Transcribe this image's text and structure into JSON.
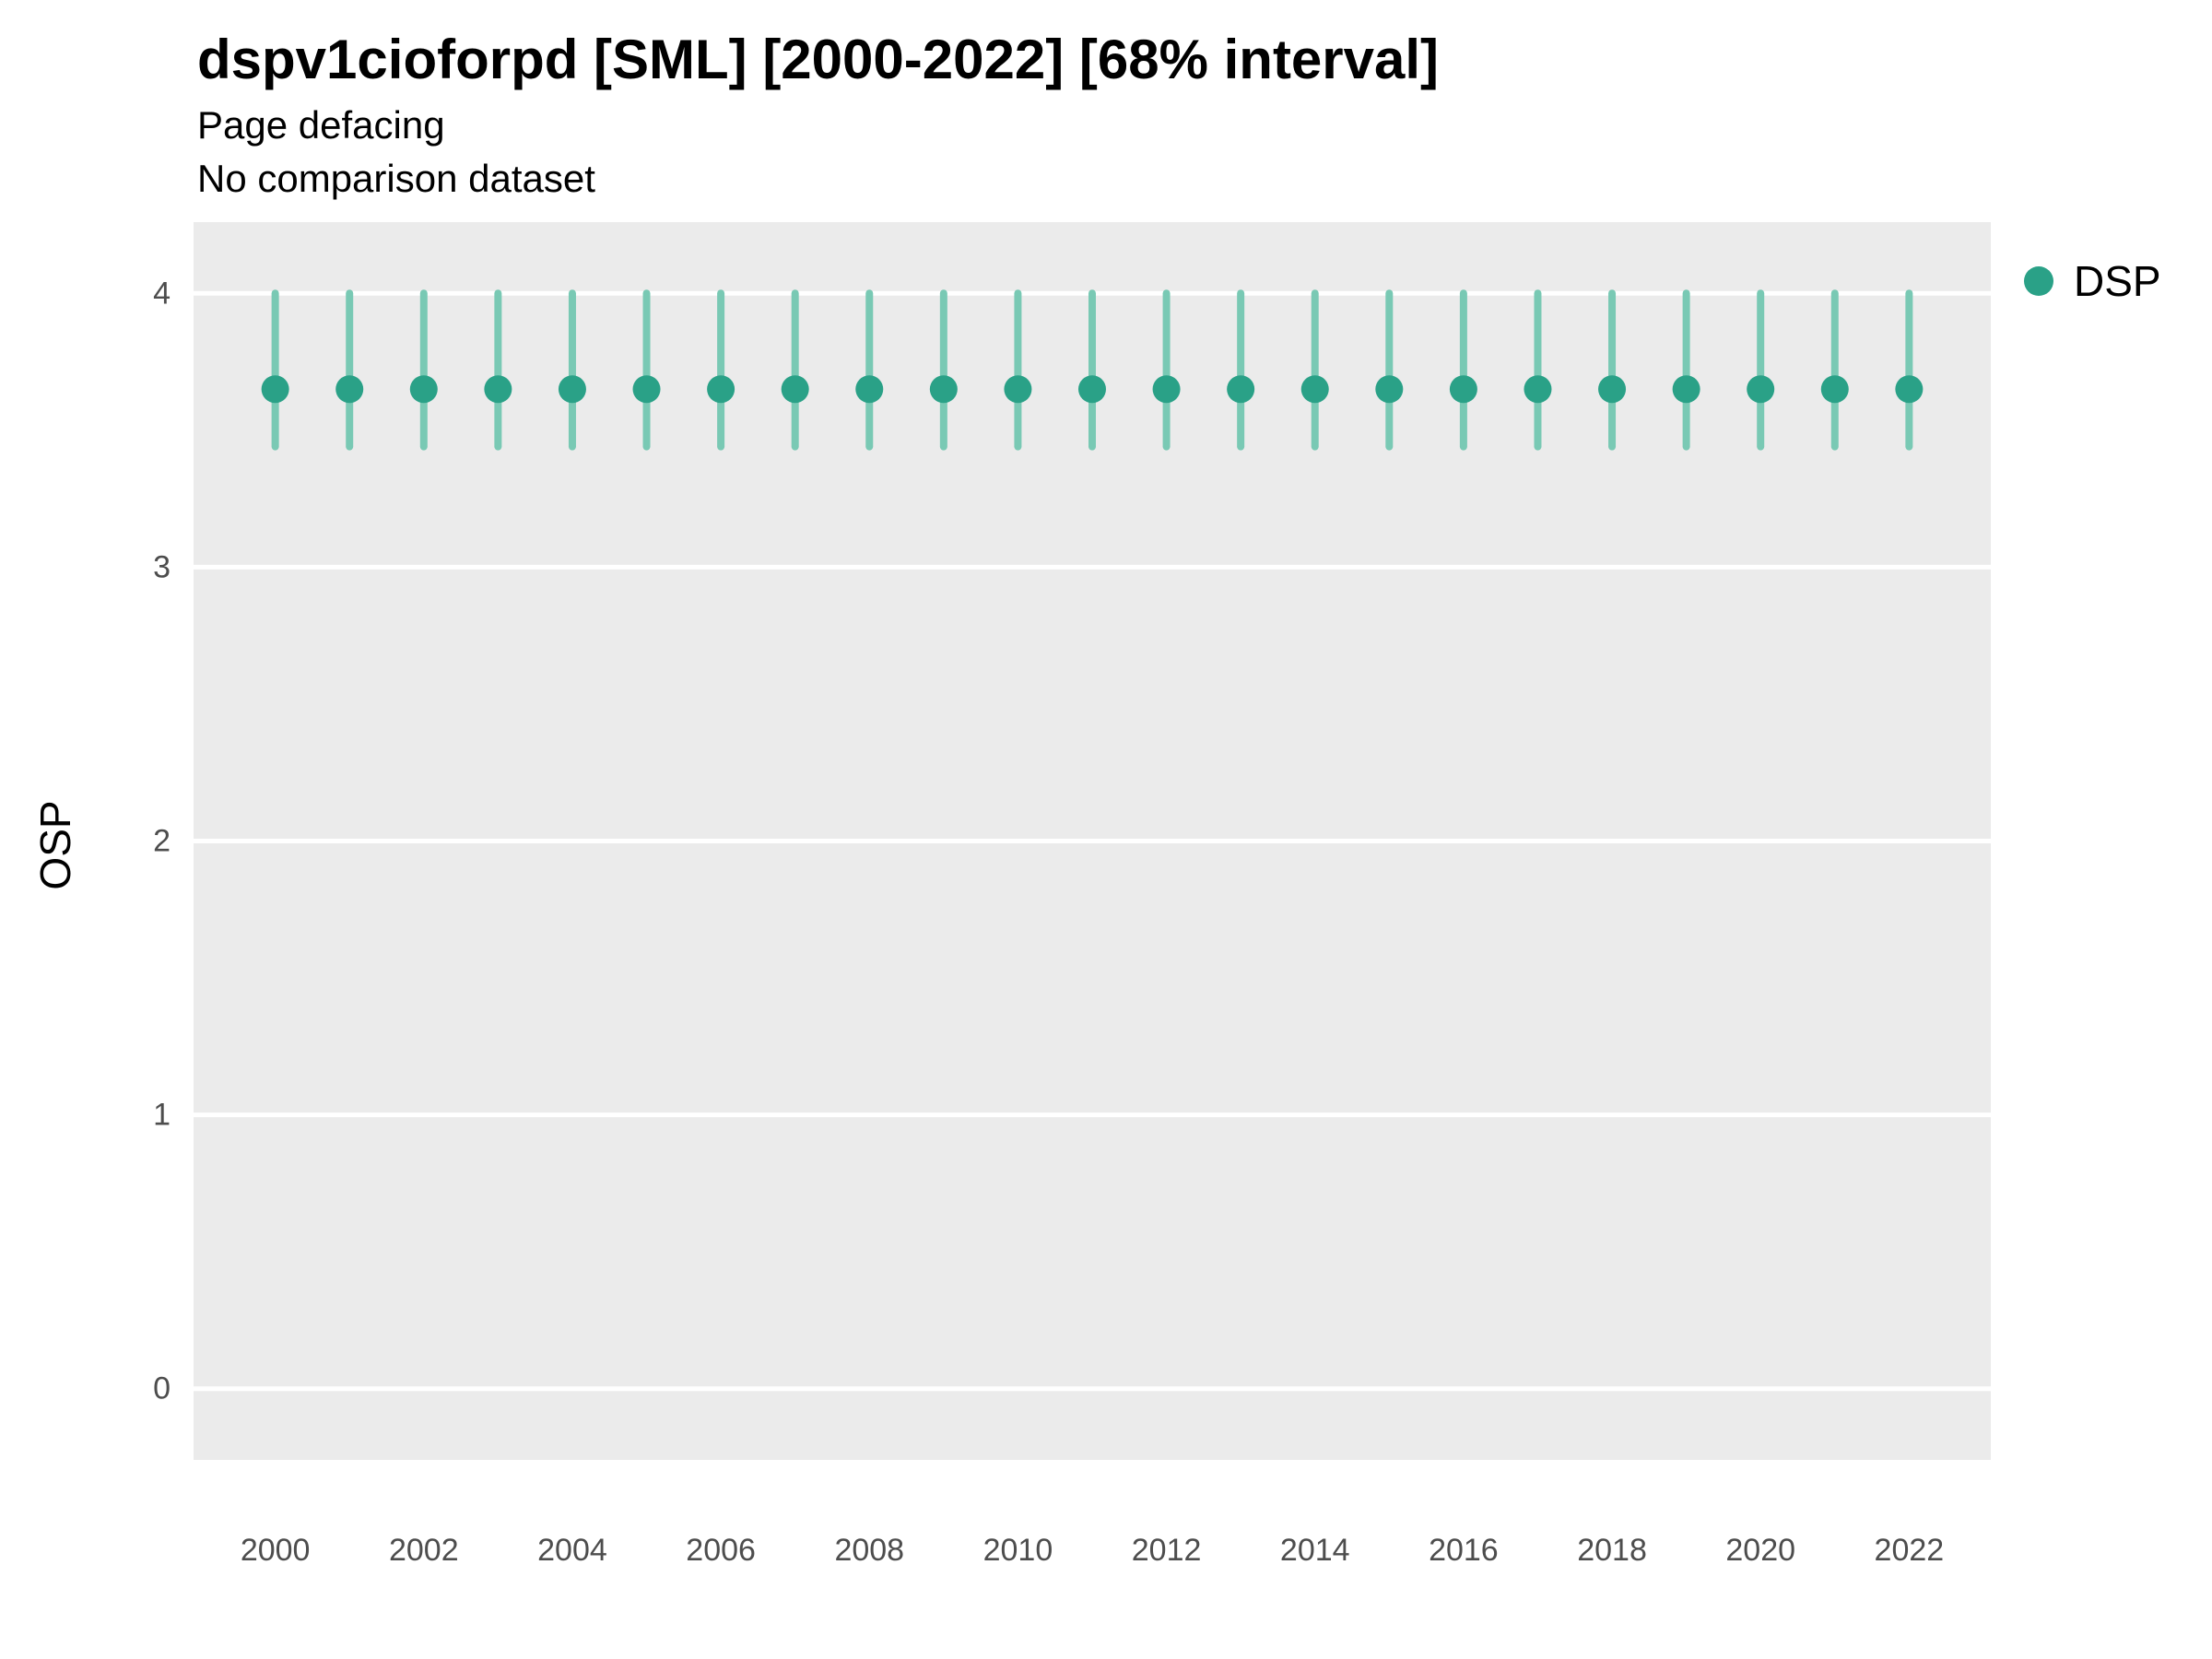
{
  "header": {
    "title": "dspv1cioforpd [SML] [2000-2022] [68% interval]",
    "subtitle1": "Page defacing",
    "subtitle2": "No comparison dataset"
  },
  "legend": {
    "label": "DSP"
  },
  "colors": {
    "point": "#2aa187",
    "interval": "#79c9b4",
    "panel": "#ebebeb",
    "grid": "#ffffff",
    "tick_text": "#4d4d4d"
  },
  "chart_data": {
    "type": "scatter",
    "title": "dspv1cioforpd [SML] [2000-2022] [68% interval]",
    "subtitle": [
      "Page defacing",
      "No comparison dataset"
    ],
    "xlabel": "",
    "ylabel": "OSP",
    "legend_position": "right-top",
    "grid": "major horizontal white lines on gray panel",
    "xlim": [
      1998.9,
      2023.1
    ],
    "ylim": [
      -0.26,
      4.26
    ],
    "xticks": [
      2000,
      2002,
      2004,
      2006,
      2008,
      2010,
      2012,
      2014,
      2016,
      2018,
      2020,
      2022
    ],
    "yticks": [
      0,
      1,
      2,
      3,
      4
    ],
    "x": [
      2000,
      2001,
      2002,
      2003,
      2004,
      2005,
      2006,
      2007,
      2008,
      2009,
      2010,
      2011,
      2012,
      2013,
      2014,
      2015,
      2016,
      2017,
      2018,
      2019,
      2020,
      2021,
      2022
    ],
    "series": [
      {
        "name": "DSP",
        "values": [
          3.65,
          3.65,
          3.65,
          3.65,
          3.65,
          3.65,
          3.65,
          3.65,
          3.65,
          3.65,
          3.65,
          3.65,
          3.65,
          3.65,
          3.65,
          3.65,
          3.65,
          3.65,
          3.65,
          3.65,
          3.65,
          3.65,
          3.65
        ],
        "lower": [
          3.44,
          3.44,
          3.44,
          3.44,
          3.44,
          3.44,
          3.44,
          3.44,
          3.44,
          3.44,
          3.44,
          3.44,
          3.44,
          3.44,
          3.44,
          3.44,
          3.44,
          3.44,
          3.44,
          3.44,
          3.44,
          3.44,
          3.44
        ],
        "upper": [
          4.0,
          4.0,
          4.0,
          4.0,
          4.0,
          4.0,
          4.0,
          4.0,
          4.0,
          4.0,
          4.0,
          4.0,
          4.0,
          4.0,
          4.0,
          4.0,
          4.0,
          4.0,
          4.0,
          4.0,
          4.0,
          4.0,
          4.0
        ],
        "interval_label": "68% interval"
      }
    ]
  }
}
